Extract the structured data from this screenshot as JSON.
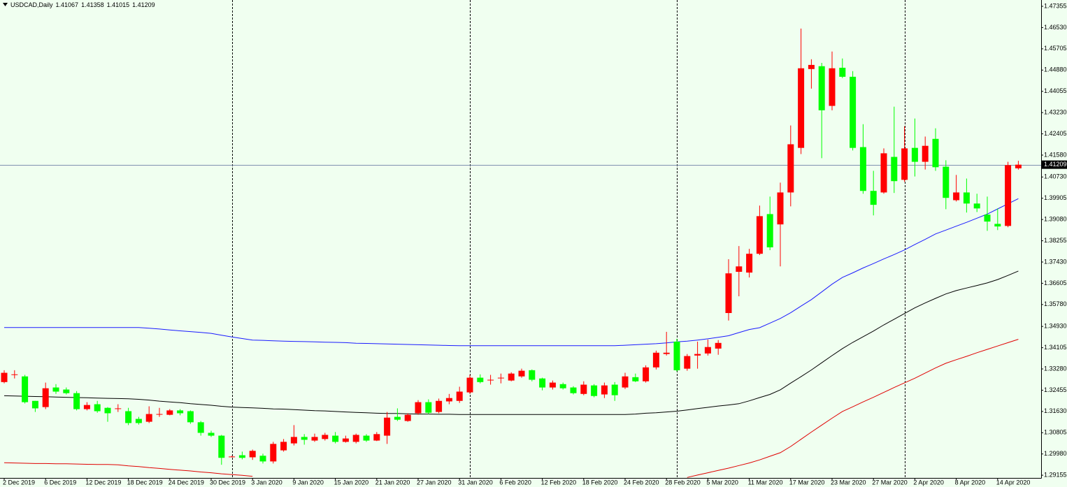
{
  "chart_data": {
    "type": "candlestick",
    "title": "USDCAD,Daily",
    "categories": [
      "2 Dec 2019",
      null,
      null,
      null,
      "6 Dec 2019",
      null,
      null,
      null,
      "12 Dec 2019",
      null,
      null,
      null,
      "18 Dec 2019",
      null,
      null,
      null,
      "24 Dec 2019",
      null,
      null,
      null,
      "30 Dec 2019",
      null,
      null,
      null,
      "3 Jan 2020",
      null,
      null,
      null,
      "9 Jan 2020",
      null,
      null,
      null,
      "15 Jan 2020",
      null,
      null,
      null,
      "21 Jan 2020",
      null,
      null,
      null,
      "27 Jan 2020",
      null,
      null,
      null,
      "31 Jan 2020",
      null,
      null,
      null,
      "6 Feb 2020",
      null,
      null,
      null,
      "12 Feb 2020",
      null,
      null,
      null,
      "18 Feb 2020",
      null,
      null,
      null,
      "24 Feb 2020",
      null,
      null,
      null,
      "28 Feb 2020",
      null,
      null,
      null,
      "5 Mar 2020",
      null,
      null,
      null,
      "11 Mar 2020",
      null,
      null,
      null,
      "17 Mar 2020",
      null,
      null,
      null,
      "23 Mar 2020",
      null,
      null,
      null,
      "27 Mar 2020",
      null,
      null,
      null,
      "2 Apr 2020",
      null,
      null,
      null,
      "8 Apr 2020",
      null,
      null,
      null,
      "14 Apr 2020",
      null,
      null
    ],
    "open": [
      1.3277,
      1.3307,
      1.3299,
      1.3204,
      1.318,
      1.3256,
      1.3248,
      1.3234,
      1.3172,
      1.3191,
      1.3177,
      1.3175,
      1.3164,
      1.3134,
      1.3123,
      1.3153,
      1.315,
      1.3167,
      1.3164,
      1.3121,
      1.308,
      1.3069,
      1.2988,
      1.2993,
      1.2985,
      1.2991,
      1.2969,
      1.3012,
      1.3039,
      1.3064,
      1.305,
      1.3056,
      1.3069,
      1.3045,
      1.3045,
      1.3069,
      1.305,
      1.3069,
      1.3142,
      1.3126,
      1.3156,
      1.3199,
      1.3161,
      1.3202,
      1.3204,
      1.3237,
      1.3294,
      1.3286,
      1.3294,
      1.3283,
      1.3299,
      1.3323,
      1.3291,
      1.3256,
      1.3269,
      1.3256,
      1.3231,
      1.3264,
      1.3229,
      1.3267,
      1.3256,
      1.3296,
      1.328,
      1.3334,
      1.3386,
      1.3434,
      1.3329,
      1.338,
      1.3388,
      1.3407,
      1.3545,
      1.3705,
      1.3702,
      1.3775,
      1.3929,
      1.3889,
      1.4013,
      1.4186,
      1.4492,
      1.4503,
      1.4349,
      1.4497,
      1.4462,
      1.4189,
      1.4019,
      1.4013,
      1.4151,
      1.4062,
      1.4186,
      1.4132,
      1.4221,
      1.4113,
      1.3983,
      1.4013,
      1.397,
      1.3927,
      1.3891,
      1.3883,
      1.41067
    ],
    "high": [
      1.3323,
      1.3323,
      1.3305,
      1.3204,
      1.3275,
      1.3269,
      1.3256,
      1.3242,
      1.3199,
      1.3204,
      1.318,
      1.3191,
      1.3177,
      1.3142,
      1.3183,
      1.3177,
      1.3172,
      1.3172,
      1.3167,
      1.3126,
      1.3088,
      1.3072,
      1.2991,
      1.3007,
      1.3015,
      1.2999,
      1.3045,
      1.3056,
      1.311,
      1.3075,
      1.3077,
      1.308,
      1.3083,
      1.3069,
      1.3077,
      1.3075,
      1.3083,
      1.3161,
      1.3175,
      1.3156,
      1.3207,
      1.321,
      1.3213,
      1.3231,
      1.3259,
      1.3305,
      1.3307,
      1.3305,
      1.331,
      1.3315,
      1.3329,
      1.3326,
      1.3294,
      1.3283,
      1.3275,
      1.3261,
      1.328,
      1.3269,
      1.3275,
      1.3277,
      1.3313,
      1.331,
      1.3342,
      1.3399,
      1.3472,
      1.3445,
      1.3386,
      1.3434,
      1.3442,
      1.344,
      1.3754,
      1.3805,
      1.3794,
      1.3962,
      1.3997,
      1.4051,
      1.4273,
      1.4649,
      1.453,
      1.4516,
      1.456,
      1.4533,
      1.4484,
      1.4278,
      1.4097,
      1.4184,
      1.4346,
      1.427,
      1.43,
      1.423,
      1.4262,
      1.4138,
      1.4081,
      1.4067,
      1.4008,
      1.3997,
      1.3951,
      1.4132,
      1.41358
    ],
    "low": [
      1.3272,
      1.3291,
      1.3194,
      1.3161,
      1.3172,
      1.3231,
      1.3229,
      1.3167,
      1.3167,
      1.3158,
      1.3123,
      1.3161,
      1.311,
      1.3112,
      1.3118,
      1.3142,
      1.3148,
      1.3148,
      1.3115,
      1.3069,
      1.3064,
      1.2956,
      1.2985,
      1.2977,
      1.2975,
      1.2961,
      1.2961,
      1.3007,
      1.3031,
      1.3034,
      1.3045,
      1.305,
      1.3039,
      1.3042,
      1.3039,
      1.3045,
      1.3048,
      1.3037,
      1.3126,
      1.3123,
      1.315,
      1.3153,
      1.3156,
      1.3191,
      1.3196,
      1.3231,
      1.3272,
      1.3267,
      1.3272,
      1.328,
      1.3294,
      1.328,
      1.3245,
      1.3248,
      1.3248,
      1.3229,
      1.3226,
      1.3218,
      1.3215,
      1.3204,
      1.325,
      1.3277,
      1.3275,
      1.3326,
      1.338,
      1.3318,
      1.3321,
      1.3329,
      1.338,
      1.3383,
      1.3516,
      1.361,
      1.3683,
      1.377,
      1.3789,
      1.3726,
      1.3959,
      1.4162,
      1.4416,
      1.4146,
      1.4332,
      1.4457,
      1.4176,
      1.4008,
      1.3924,
      1.4008,
      1.4011,
      1.4054,
      1.4075,
      1.4102,
      1.4097,
      1.3948,
      1.3978,
      1.3935,
      1.3937,
      1.3864,
      1.3867,
      1.3878,
      1.41015
    ],
    "close": [
      1.3313,
      1.3307,
      1.3199,
      1.3175,
      1.3253,
      1.324,
      1.3234,
      1.3172,
      1.3188,
      1.3164,
      1.3156,
      1.3175,
      1.3118,
      1.3118,
      1.3153,
      1.3153,
      1.3167,
      1.3156,
      1.3121,
      1.308,
      1.3069,
      1.2983,
      1.2988,
      1.2983,
      1.301,
      1.2969,
      1.3037,
      1.3045,
      1.3064,
      1.3053,
      1.3064,
      1.3072,
      1.3045,
      1.3058,
      1.3072,
      1.305,
      1.3075,
      1.3139,
      1.3131,
      1.315,
      1.3199,
      1.3158,
      1.3204,
      1.3215,
      1.324,
      1.3294,
      1.3277,
      1.3286,
      1.3294,
      1.331,
      1.3321,
      1.3286,
      1.3256,
      1.3275,
      1.3253,
      1.3234,
      1.3267,
      1.3223,
      1.3264,
      1.3226,
      1.3299,
      1.328,
      1.3334,
      1.3391,
      1.3391,
      1.3323,
      1.3378,
      1.3386,
      1.3413,
      1.3429,
      1.3699,
      1.3726,
      1.3775,
      1.3921,
      1.38,
      1.4013,
      1.42,
      1.4495,
      1.4508,
      1.4332,
      1.4495,
      1.4462,
      1.4186,
      1.4019,
      1.3965,
      1.4165,
      1.4057,
      1.4184,
      1.4132,
      1.4194,
      1.4111,
      1.3992,
      1.4013,
      1.397,
      1.3951,
      1.39,
      1.3881,
      1.4119,
      1.41209
    ],
    "up_color": "#ff0000",
    "down_color": "#00ff00",
    "lines": [
      {
        "color": "#1a1aff",
        "values": [
          1.3489,
          1.3489,
          1.3489,
          1.3489,
          1.3489,
          1.3489,
          1.3489,
          1.3489,
          1.3489,
          1.3489,
          1.3489,
          1.3489,
          1.3489,
          1.3489,
          1.3486,
          1.3483,
          1.3479,
          1.3476,
          1.3473,
          1.347,
          1.3466,
          1.3459,
          1.3452,
          1.3446,
          1.344,
          1.3439,
          1.3437,
          1.3436,
          1.3435,
          1.3434,
          1.3433,
          1.3432,
          1.3431,
          1.343,
          1.3428,
          1.3427,
          1.3426,
          1.3425,
          1.3424,
          1.3423,
          1.3422,
          1.3421,
          1.342,
          1.3419,
          1.3418,
          1.3418,
          1.3418,
          1.3418,
          1.3418,
          1.3418,
          1.3418,
          1.3418,
          1.3418,
          1.3418,
          1.3418,
          1.3418,
          1.3418,
          1.3418,
          1.3418,
          1.3418,
          1.342,
          1.3422,
          1.3424,
          1.3426,
          1.3429,
          1.3433,
          1.3436,
          1.344,
          1.3445,
          1.3451,
          1.3457,
          1.3469,
          1.3481,
          1.3488,
          1.3506,
          1.3524,
          1.3546,
          1.3572,
          1.3597,
          1.3627,
          1.3657,
          1.3683,
          1.3701,
          1.372,
          1.3737,
          1.3755,
          1.3772,
          1.379,
          1.3811,
          1.3831,
          1.3852,
          1.3867,
          1.3882,
          1.3897,
          1.3913,
          1.3929,
          1.3949,
          1.3969,
          1.3989
        ]
      },
      {
        "color": "#000000",
        "values": [
          1.3224,
          1.3223,
          1.3222,
          1.3221,
          1.322,
          1.3219,
          1.3218,
          1.3217,
          1.3216,
          1.3215,
          1.3214,
          1.3213,
          1.3212,
          1.321,
          1.3207,
          1.3203,
          1.32,
          1.3197,
          1.3193,
          1.319,
          1.3187,
          1.3183,
          1.318,
          1.3178,
          1.3177,
          1.3175,
          1.3173,
          1.3172,
          1.317,
          1.3168,
          1.3166,
          1.3165,
          1.3163,
          1.3161,
          1.3159,
          1.3158,
          1.3156,
          1.3155,
          1.3155,
          1.3154,
          1.3153,
          1.3153,
          1.3152,
          1.3152,
          1.3151,
          1.3151,
          1.3151,
          1.3151,
          1.3151,
          1.3151,
          1.3151,
          1.3151,
          1.3151,
          1.3151,
          1.3151,
          1.3151,
          1.3151,
          1.3151,
          1.3151,
          1.3151,
          1.3151,
          1.3153,
          1.3156,
          1.3158,
          1.3161,
          1.3164,
          1.3169,
          1.3174,
          1.3179,
          1.3184,
          1.3188,
          1.3193,
          1.3204,
          1.3217,
          1.3229,
          1.3247,
          1.3273,
          1.3298,
          1.3324,
          1.3352,
          1.338,
          1.3407,
          1.3431,
          1.3453,
          1.3475,
          1.3499,
          1.3521,
          1.3543,
          1.3565,
          1.3584,
          1.3602,
          1.3619,
          1.3632,
          1.3642,
          1.3652,
          1.3662,
          1.3675,
          1.3691,
          1.3708
        ]
      },
      {
        "color": "#e00000",
        "values": [
          1.2964,
          1.2963,
          1.2962,
          1.2961,
          1.2961,
          1.296,
          1.296,
          1.2959,
          1.2958,
          1.2957,
          1.2957,
          1.2956,
          1.2952,
          1.2949,
          1.2945,
          1.2942,
          1.2938,
          1.2935,
          1.2932,
          1.2928,
          1.2925,
          1.2921,
          1.2918,
          1.2915,
          1.2911,
          null,
          null,
          null,
          null,
          null,
          null,
          null,
          null,
          null,
          null,
          null,
          null,
          null,
          null,
          null,
          null,
          null,
          null,
          null,
          null,
          null,
          null,
          null,
          null,
          null,
          null,
          null,
          null,
          null,
          null,
          null,
          null,
          null,
          null,
          null,
          null,
          null,
          null,
          null,
          null,
          null,
          1.2907,
          1.2916,
          1.2925,
          1.2934,
          1.2943,
          1.2953,
          1.2963,
          1.2975,
          1.2989,
          1.3003,
          1.3027,
          1.3055,
          1.3083,
          1.311,
          1.3137,
          1.3163,
          1.3181,
          1.32,
          1.3218,
          1.3237,
          1.3256,
          1.3274,
          1.3292,
          1.3312,
          1.3332,
          1.335,
          1.3364,
          1.3377,
          1.3391,
          1.3404,
          1.3417,
          1.343,
          1.3443
        ]
      }
    ],
    "ylim": [
      1.2905,
      1.476
    ],
    "yticks": [
      {
        "value": 1.47355,
        "label": "1.47355"
      },
      {
        "value": 1.4653,
        "label": "1.46530"
      },
      {
        "value": 1.45705,
        "label": "1.45705"
      },
      {
        "value": 1.4488,
        "label": "1.44880"
      },
      {
        "value": 1.44055,
        "label": "1.44055"
      },
      {
        "value": 1.4323,
        "label": "1.43230"
      },
      {
        "value": 1.42405,
        "label": "1.42405"
      },
      {
        "value": 1.4158,
        "label": "1.41580"
      },
      {
        "value": 1.4073,
        "label": "1.40730"
      },
      {
        "value": 1.39905,
        "label": "1.39905"
      },
      {
        "value": 1.3908,
        "label": "1.39080"
      },
      {
        "value": 1.38255,
        "label": "1.38255"
      },
      {
        "value": 1.3743,
        "label": "1.37430"
      },
      {
        "value": 1.36605,
        "label": "1.36605"
      },
      {
        "value": 1.3578,
        "label": "1.35780"
      },
      {
        "value": 1.3493,
        "label": "1.34930"
      },
      {
        "value": 1.34105,
        "label": "1.34105"
      },
      {
        "value": 1.3328,
        "label": "1.33280"
      },
      {
        "value": 1.32455,
        "label": "1.32455"
      },
      {
        "value": 1.3163,
        "label": "1.31630"
      },
      {
        "value": 1.30805,
        "label": "1.30805"
      },
      {
        "value": 1.2998,
        "label": "1.29980"
      },
      {
        "value": 1.29155,
        "label": "1.29155"
      }
    ]
  }
}
